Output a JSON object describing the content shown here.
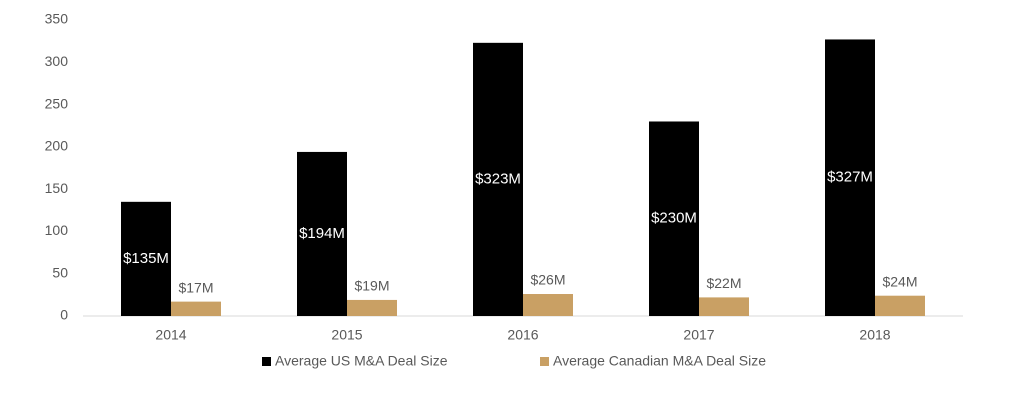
{
  "chart_data": {
    "type": "bar",
    "categories": [
      "2014",
      "2015",
      "2016",
      "2017",
      "2018"
    ],
    "series": [
      {
        "name": "Average US M&A Deal Size",
        "color": "#000000",
        "values": [
          135,
          194,
          323,
          230,
          327
        ],
        "value_labels": [
          "$135M",
          "$194M",
          "$323M",
          "$230M",
          "$327M"
        ]
      },
      {
        "name": "Average Canadian M&A Deal Size",
        "color": "#c9a064",
        "values": [
          17,
          19,
          26,
          22,
          24
        ],
        "value_labels": [
          "$17M",
          "$19M",
          "$26M",
          "$22M",
          "$24M"
        ]
      }
    ],
    "ylim": [
      0,
      350
    ],
    "yticks": [
      0,
      50,
      100,
      150,
      200,
      250,
      300,
      350
    ],
    "grid": false
  }
}
